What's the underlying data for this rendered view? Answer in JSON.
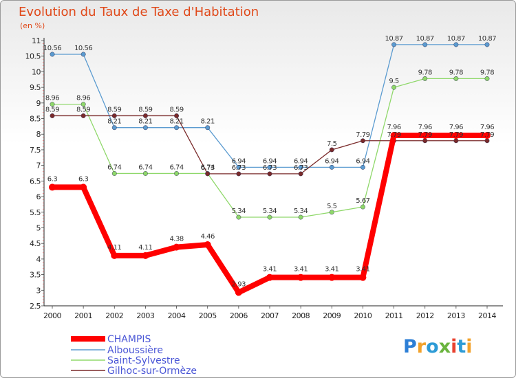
{
  "title": "Evolution du Taux de Taxe d'Habitation",
  "unit": "(en %)",
  "logo": {
    "letters": [
      "P",
      "r",
      "o",
      "x",
      "i",
      "t",
      "i"
    ],
    "colors": [
      "#2d7fd6",
      "#f2a22b",
      "#2d9bd6",
      "#6ab43e",
      "#e8412f",
      "#2d9bd6",
      "#f2a22b"
    ]
  },
  "chart_data": {
    "type": "line",
    "title": "Evolution du Taux de Taxe d'Habitation",
    "ylabel": "(en %)",
    "xlabel": "",
    "x": [
      "2000",
      "2001",
      "2002",
      "2003",
      "2004",
      "2005",
      "2006",
      "2007",
      "2008",
      "2009",
      "2010",
      "2011",
      "2012",
      "2013",
      "2014"
    ],
    "ylim": [
      2.5,
      11
    ],
    "yticks": [
      "2.5",
      "3",
      "3.5",
      "4",
      "4.5",
      "5",
      "5.5",
      "6",
      "6.5",
      "7",
      "7.5",
      "8",
      "8.5",
      "9",
      "9.5",
      "10",
      "10.5",
      "11"
    ],
    "grid": false,
    "legend_position": "bottom-left",
    "series": [
      {
        "name": "CHAMPIS",
        "color": "#ff0000",
        "width": 8,
        "values": [
          6.3,
          6.3,
          4.11,
          4.11,
          4.38,
          4.46,
          2.93,
          3.41,
          3.41,
          3.41,
          3.41,
          7.96,
          7.96,
          7.96,
          7.96
        ]
      },
      {
        "name": "Alboussière",
        "color": "#5b9bd0",
        "width": 1.3,
        "values": [
          10.56,
          10.56,
          8.21,
          8.21,
          8.21,
          8.21,
          6.94,
          6.94,
          6.94,
          6.94,
          6.94,
          10.87,
          10.87,
          10.87,
          10.87
        ]
      },
      {
        "name": "Saint-Sylvestre",
        "color": "#8fd86a",
        "width": 1.3,
        "values": [
          8.96,
          8.96,
          6.74,
          6.74,
          6.74,
          6.74,
          5.34,
          5.34,
          5.34,
          5.5,
          5.67,
          9.5,
          9.78,
          9.78,
          9.78
        ]
      },
      {
        "name": "Gilhoc-sur-Ormèze",
        "color": "#7a2a2a",
        "width": 1.3,
        "values": [
          8.59,
          8.59,
          8.59,
          8.59,
          8.59,
          6.73,
          6.73,
          6.73,
          6.73,
          7.5,
          7.79,
          7.79,
          7.79,
          7.79,
          7.79
        ]
      }
    ]
  }
}
